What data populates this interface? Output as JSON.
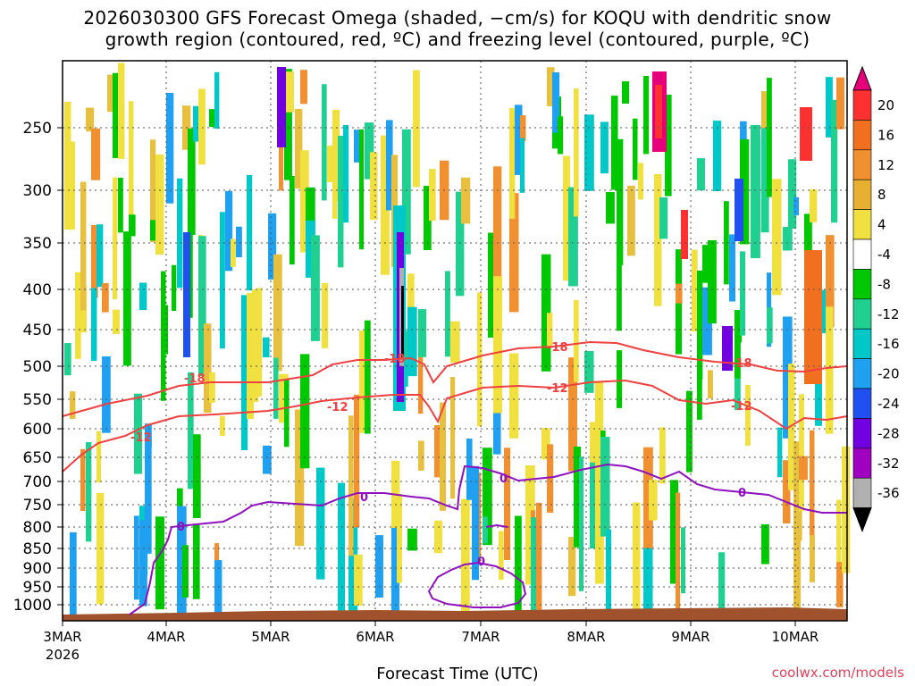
{
  "title": {
    "line1": "2026030300 GFS Forecast Omega (shaded, −cm/s) for KOQU with dendritic snow",
    "line2": "growth region (contoured, red, ºC) and freezing level (contoured, purple, ºC)"
  },
  "xlabel": "Forecast Time (UTC)",
  "watermark": "coolwx.com/models",
  "y_ticks": [
    "250",
    "300",
    "350",
    "400",
    "450",
    "500",
    "550",
    "600",
    "650",
    "700",
    "750",
    "800",
    "850",
    "900",
    "950",
    "1000"
  ],
  "x_ticks": [
    "3MAR",
    "4MAR",
    "5MAR",
    "6MAR",
    "7MAR",
    "8MAR",
    "9MAR",
    "10MAR"
  ],
  "x_year": "2026",
  "colorbar": {
    "labels": [
      "20",
      "16",
      "12",
      "8",
      "4",
      "-4",
      "-8",
      "-12",
      "-16",
      "-20",
      "-24",
      "-28",
      "-32",
      "-36"
    ],
    "colors": [
      "#e6007a",
      "#ff3030",
      "#f07020",
      "#f09030",
      "#e8b030",
      "#f0e040",
      "#ffffff",
      "#00c800",
      "#20d090",
      "#00c8c8",
      "#20a0f0",
      "#2050f0",
      "#7000e0",
      "#a000c0",
      "#b0b0b0",
      "#000000"
    ]
  },
  "contours": {
    "red": [
      "-18",
      "-18",
      "-12",
      "-12",
      "-18",
      "-12",
      "-18",
      "-12",
      "-18",
      "-12"
    ],
    "purple": [
      "0",
      "0",
      "0",
      "0",
      "0"
    ]
  },
  "colors": {
    "red_contour": "#f04040",
    "purple_contour": "#9010c0",
    "terrain": "#a0522d"
  }
}
